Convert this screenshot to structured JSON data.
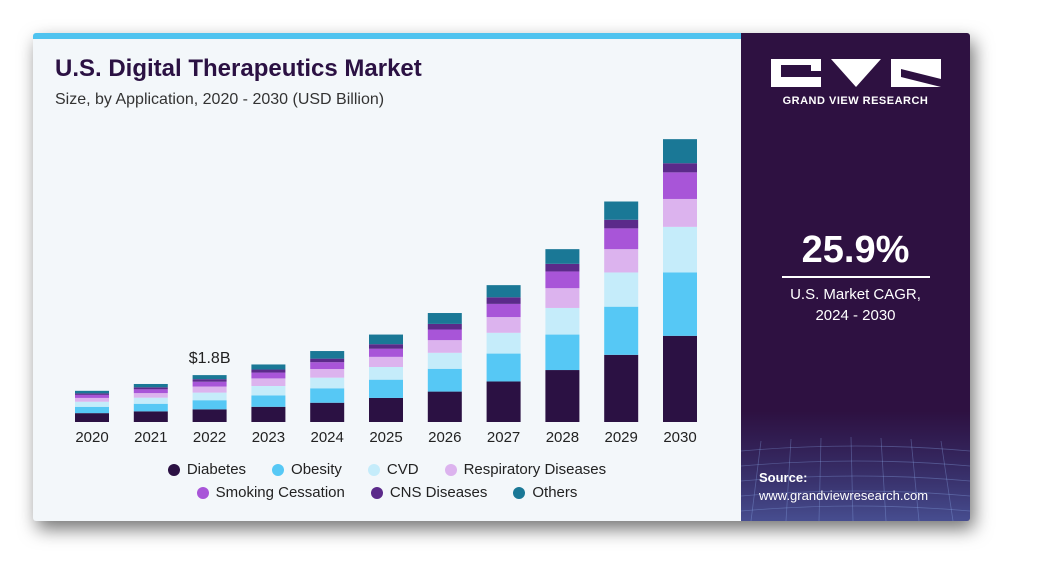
{
  "header": {
    "title": "U.S. Digital Therapeutics Market",
    "subtitle": "Size, by Application, 2020 - 2030 (USD Billion)"
  },
  "chart_data": {
    "type": "bar",
    "stacked": true,
    "categories": [
      "2020",
      "2021",
      "2022",
      "2023",
      "2024",
      "2025",
      "2026",
      "2027",
      "2028",
      "2029",
      "2030"
    ],
    "series": [
      {
        "name": "Diabetes",
        "color": "#2b1143",
        "values": [
          0.35,
          0.42,
          0.5,
          0.6,
          0.76,
          0.95,
          1.2,
          1.6,
          2.05,
          2.65,
          3.4
        ]
      },
      {
        "name": "Obesity",
        "color": "#56c8f5",
        "values": [
          0.25,
          0.3,
          0.36,
          0.45,
          0.57,
          0.72,
          0.9,
          1.1,
          1.4,
          1.9,
          2.5
        ]
      },
      {
        "name": "CVD",
        "color": "#c5ecfa",
        "values": [
          0.2,
          0.24,
          0.3,
          0.37,
          0.42,
          0.5,
          0.63,
          0.82,
          1.05,
          1.35,
          1.8
        ]
      },
      {
        "name": "Respiratory Diseases",
        "color": "#dcb3ee",
        "values": [
          0.15,
          0.18,
          0.24,
          0.3,
          0.34,
          0.4,
          0.5,
          0.62,
          0.78,
          0.92,
          1.1
        ]
      },
      {
        "name": "Smoking Cessation",
        "color": "#a855d8",
        "values": [
          0.12,
          0.15,
          0.19,
          0.23,
          0.27,
          0.32,
          0.42,
          0.52,
          0.66,
          0.82,
          1.05
        ]
      },
      {
        "name": "CNS Diseases",
        "color": "#5b2a8a",
        "values": [
          0.06,
          0.08,
          0.1,
          0.12,
          0.14,
          0.18,
          0.22,
          0.26,
          0.3,
          0.34,
          0.36
        ]
      },
      {
        "name": "Others",
        "color": "#1a7896",
        "values": [
          0.1,
          0.13,
          0.16,
          0.2,
          0.3,
          0.38,
          0.43,
          0.48,
          0.58,
          0.72,
          0.95
        ]
      }
    ],
    "annotations": [
      {
        "category": "2022",
        "text": "$1.8B"
      }
    ],
    "ylim": [
      0,
      11.6
    ],
    "grid": false,
    "legend": "bottom",
    "xlabel": "",
    "ylabel": ""
  },
  "sidebar": {
    "brand": "GRAND VIEW RESEARCH",
    "cagr_value": "25.9%",
    "cagr_label_line1": "U.S. Market CAGR,",
    "cagr_label_line2": "2024 - 2030",
    "source_label": "Source:",
    "source_url": "www.grandviewresearch.com"
  }
}
